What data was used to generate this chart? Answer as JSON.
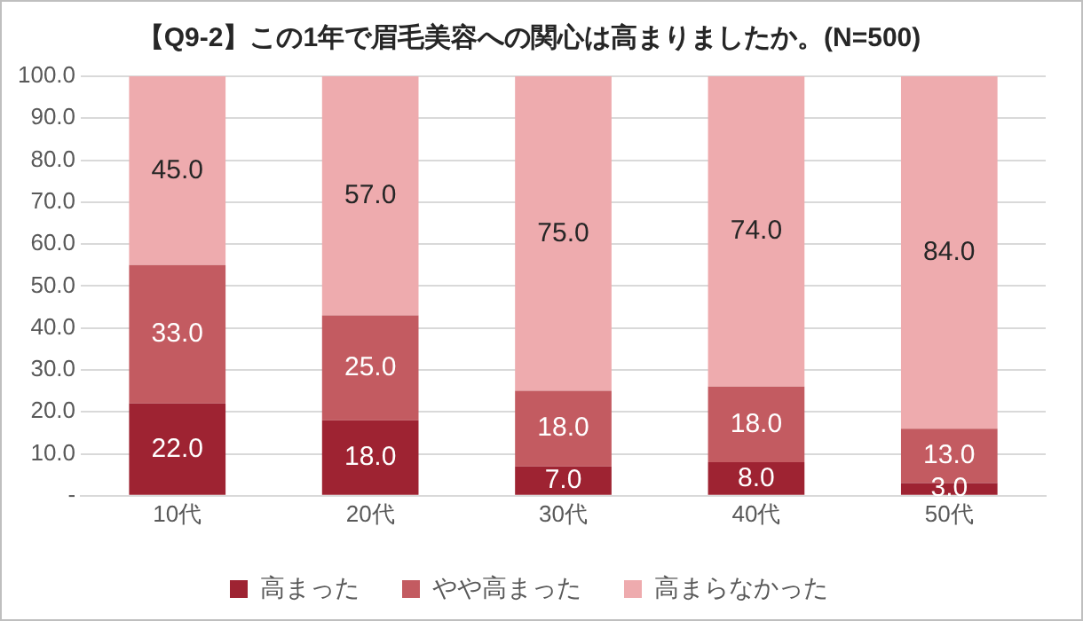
{
  "chart_data": {
    "type": "bar",
    "title": "【Q9-2】この1年で眉毛美容への関心は高まりましたか。(N=500)",
    "categories": [
      "10代",
      "20代",
      "30代",
      "40代",
      "50代"
    ],
    "stacked": true,
    "series": [
      {
        "name": "高まった",
        "color": "#9e2332",
        "values": [
          22,
          18,
          7,
          8,
          3
        ],
        "value_labels": [
          "22.0",
          "18.0",
          "7.0",
          "8.0",
          "3.0"
        ]
      },
      {
        "name": "やや高まった",
        "color": "#c35b61",
        "values": [
          33,
          25,
          18,
          18,
          13
        ],
        "value_labels": [
          "33.0",
          "25.0",
          "18.0",
          "18.0",
          "13.0"
        ]
      },
      {
        "name": "高まらなかった",
        "color": "#eeabae",
        "values": [
          45,
          57,
          75,
          74,
          84
        ],
        "value_labels": [
          "45.0",
          "57.0",
          "75.0",
          "74.0",
          "84.0"
        ]
      }
    ],
    "ylim": [
      0,
      100
    ],
    "yticks": [
      {
        "value": 0,
        "label": "-"
      },
      {
        "value": 10,
        "label": "10.0"
      },
      {
        "value": 20,
        "label": "20.0"
      },
      {
        "value": 30,
        "label": "30.0"
      },
      {
        "value": 40,
        "label": "40.0"
      },
      {
        "value": 50,
        "label": "50.0"
      },
      {
        "value": 60,
        "label": "60.0"
      },
      {
        "value": 70,
        "label": "70.0"
      },
      {
        "value": 80,
        "label": "80.0"
      },
      {
        "value": 90,
        "label": "90.0"
      },
      {
        "value": 100,
        "label": "100.0"
      }
    ],
    "grid": "y",
    "legend": "bottom"
  }
}
